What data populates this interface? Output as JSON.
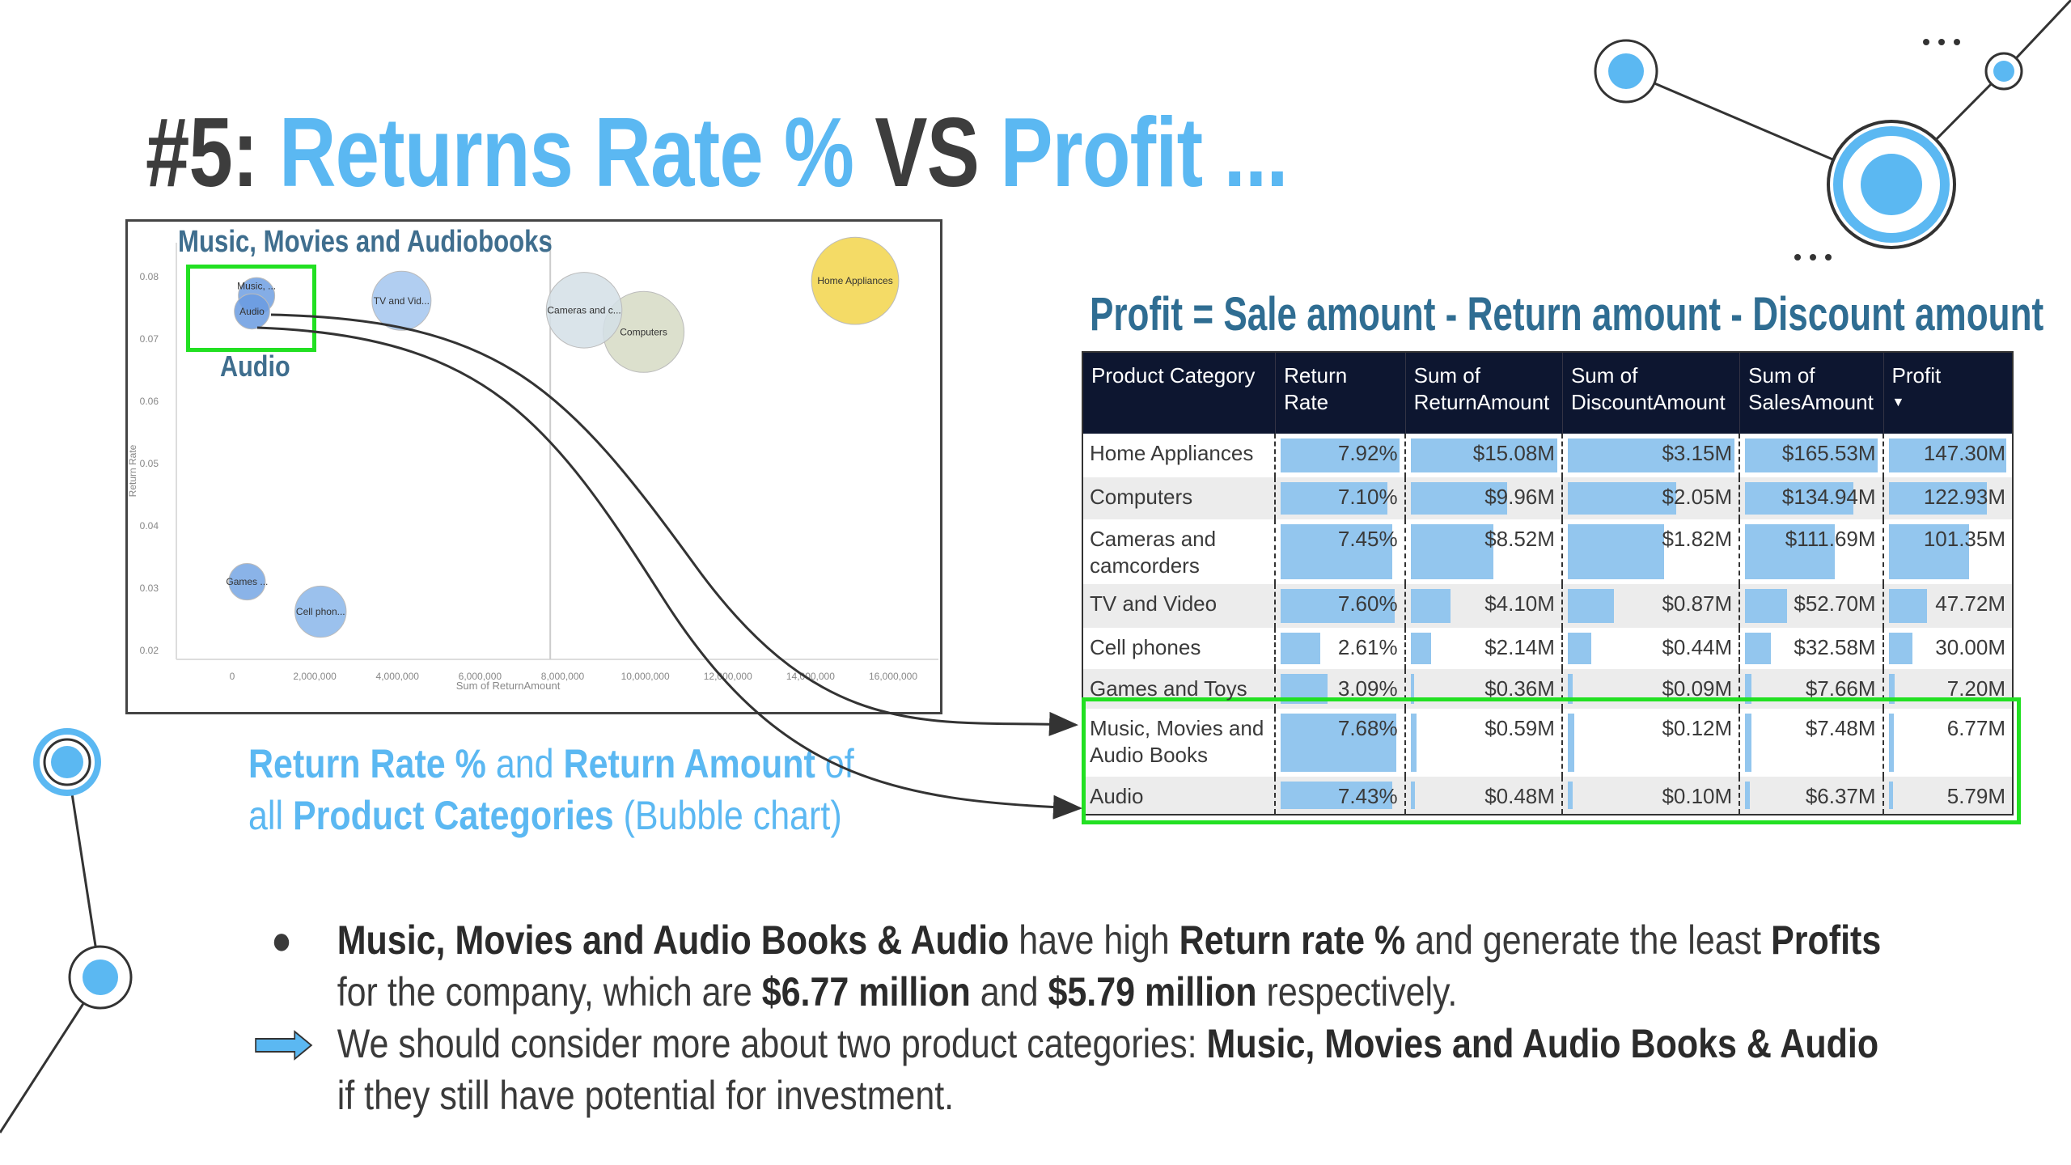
{
  "title": {
    "prefix": "#5: ",
    "part1": "Returns Rate %",
    "vs": " VS ",
    "part2": "Profit ..."
  },
  "chart_box": {
    "title": "Music, Movies and Audiobooks",
    "highlight_label": "Audio"
  },
  "chart_data": {
    "type": "scatter",
    "xlabel": "Sum of ReturnAmount",
    "ylabel": "Return Rate",
    "xlim": [
      -1200000,
      17000000
    ],
    "ylim": [
      0.02,
      0.08
    ],
    "xticks": [
      "0",
      "2,000,000",
      "4,000,000",
      "6,000,000",
      "8,000,000",
      "10,000,000",
      "12,000,000",
      "14,000,000",
      "16,000,000"
    ],
    "xtick_values": [
      0,
      2000000,
      4000000,
      6000000,
      8000000,
      10000000,
      12000000,
      14000000,
      16000000
    ],
    "yticks": [
      "0.08",
      "0.07",
      "0.06",
      "0.05",
      "0.04",
      "0.03",
      "0.02"
    ],
    "ytick_values": [
      0.08,
      0.07,
      0.06,
      0.05,
      0.04,
      0.03,
      0.02
    ],
    "reference_line_x": 7700000,
    "points": [
      {
        "label": "Home Appliances",
        "x": 15080000,
        "y": 0.0792,
        "size": 165.53,
        "color": "#f2d54b"
      },
      {
        "label": "Computers",
        "x": 9960000,
        "y": 0.071,
        "size": 134.94,
        "color": "#d6dac4"
      },
      {
        "label": "Cameras and c...",
        "x": 8520000,
        "y": 0.0745,
        "size": 111.69,
        "color": "#d4dfe6"
      },
      {
        "label": "TV and Vid...",
        "x": 4100000,
        "y": 0.076,
        "size": 52.7,
        "color": "#a3c6ee"
      },
      {
        "label": "Cell phon...",
        "x": 2140000,
        "y": 0.0261,
        "size": 32.58,
        "color": "#8ab6ea"
      },
      {
        "label": "Games ...",
        "x": 360000,
        "y": 0.0309,
        "size": 7.66,
        "color": "#75a6e4"
      },
      {
        "label": "Music, ...",
        "x": 590000,
        "y": 0.0768,
        "size": 7.48,
        "color": "#6f9fe2"
      },
      {
        "label": "Audio",
        "x": 480000,
        "y": 0.0743,
        "size": 6.37,
        "color": "#6a9be0"
      }
    ]
  },
  "caption": {
    "a": "Return Rate %",
    "b": " and ",
    "c": "Return Amount",
    "d": " of",
    "e": "all ",
    "f": "Product Categories",
    "g": " (Bubble chart)"
  },
  "formula": "Profit = Sale amount - Return amount  - Discount amount",
  "table": {
    "headers": [
      "Product Category",
      "Return Rate",
      "Sum of ReturnAmount",
      "Sum of DiscountAmount",
      "Sum of SalesAmount",
      "Profit"
    ],
    "sort_icon": "triangle-down",
    "rows": [
      [
        "Home Appliances",
        "7.92%",
        "$15.08M",
        "$3.15M",
        "$165.53M",
        "147.30M"
      ],
      [
        "Computers",
        "7.10%",
        "$9.96M",
        "$2.05M",
        "$134.94M",
        "122.93M"
      ],
      [
        "Cameras and camcorders",
        "7.45%",
        "$8.52M",
        "$1.82M",
        "$111.69M",
        "101.35M"
      ],
      [
        "TV and Video",
        "7.60%",
        "$4.10M",
        "$0.87M",
        "$52.70M",
        "47.72M"
      ],
      [
        "Cell phones",
        "2.61%",
        "$2.14M",
        "$0.44M",
        "$32.58M",
        "30.00M"
      ],
      [
        "Games and Toys",
        "3.09%",
        "$0.36M",
        "$0.09M",
        "$7.66M",
        "7.20M"
      ],
      [
        "Music, Movies and Audio Books",
        "7.68%",
        "$0.59M",
        "$0.12M",
        "$7.48M",
        "6.77M"
      ],
      [
        "Audio",
        "7.43%",
        "$0.48M",
        "$0.10M",
        "$6.37M",
        "5.79M"
      ]
    ]
  },
  "bullets": {
    "b1": "Music, Movies and Audio Books & Audio",
    "t1": " have high ",
    "b2": "Return rate %",
    "t2": " and generate the least ",
    "b3": "Profits",
    "t3": "for the company, which are ",
    "b4": "$6.77 million",
    "t4": " and ",
    "b5": "$5.79 million",
    "t5": " respectively.",
    "t6": "We should consider more about two product categories: ",
    "b6": "Music, Movies and Audio Books & Audio",
    "t7": "if they still have potential for investment."
  },
  "colors": {
    "accent": "#5bb8f2",
    "dark": "#3d3d3d",
    "highlight": "#22e022",
    "header": "#0d1630",
    "bar": "#93c6ee"
  }
}
